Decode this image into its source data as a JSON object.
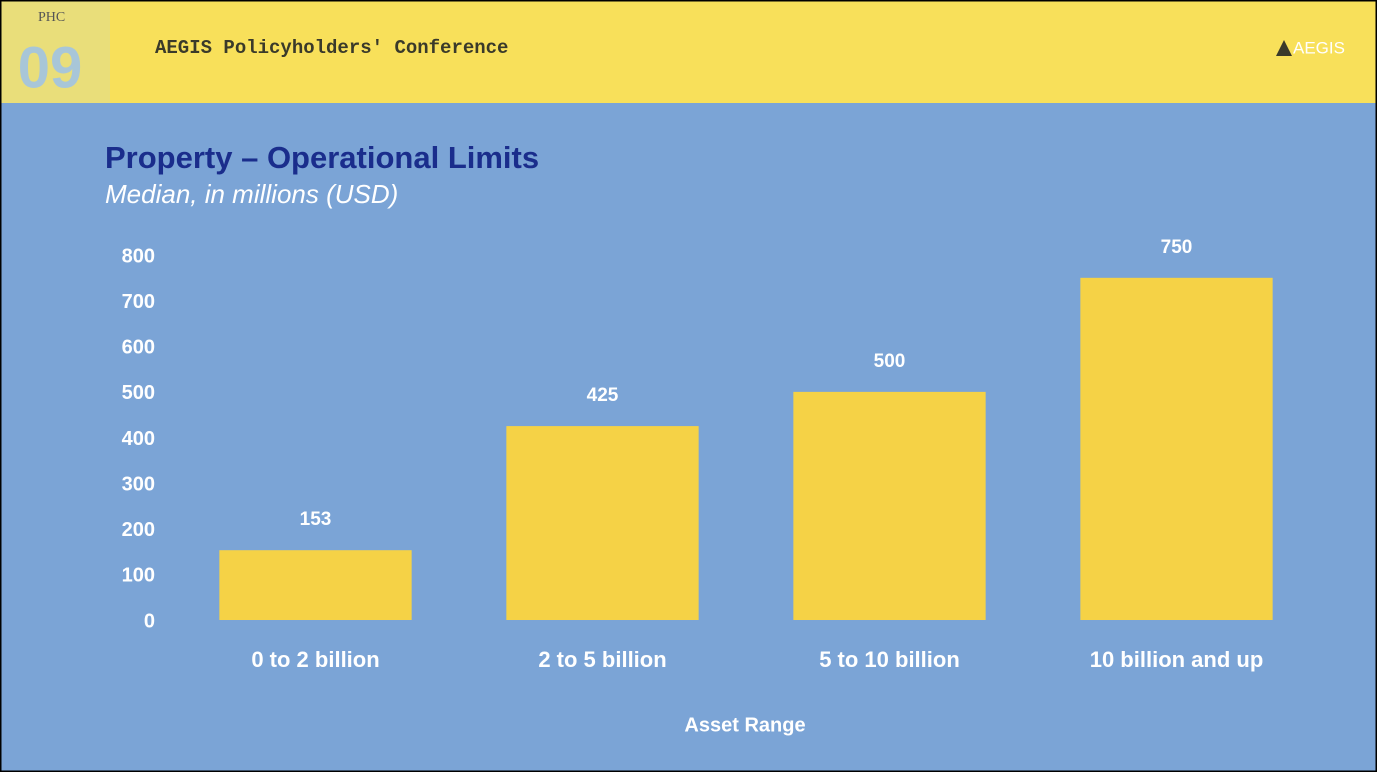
{
  "header": {
    "badge_top": "PHC",
    "badge_number": "09",
    "conference": "AEGIS Policyholders' Conference",
    "logo": "AEGIS"
  },
  "chart_data": {
    "type": "bar",
    "title": "Property – Operational Limits",
    "subtitle": "Median, in millions (USD)",
    "categories": [
      "0 to 2 billion",
      "2 to 5 billion",
      "5 to 10 billion",
      "10 billion and up"
    ],
    "values": [
      153,
      425,
      500,
      750
    ],
    "color": "#f5d246",
    "x_label": "Asset Range",
    "ylim": [
      0,
      800
    ],
    "yticks": [
      0,
      100,
      200,
      300,
      400,
      500,
      600,
      700,
      800
    ],
    "grid": false
  }
}
